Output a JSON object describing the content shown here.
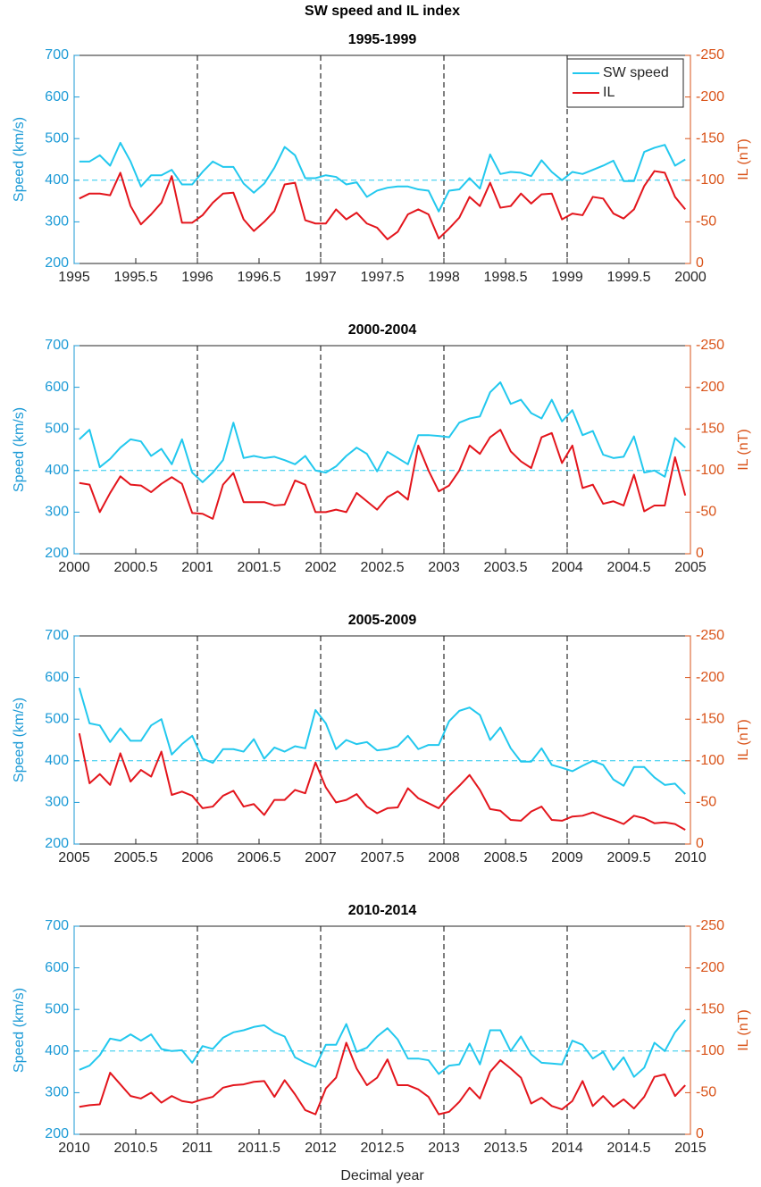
{
  "title": "SW speed and IL index",
  "xlabel": "Decimal year",
  "chart_data": [
    {
      "type": "line",
      "title": "1995-1999",
      "ylabel": "Speed (km/s)",
      "y2label": "IL (nT)",
      "x": [
        1995.042,
        1995.125,
        1995.208,
        1995.292,
        1995.375,
        1995.458,
        1995.542,
        1995.625,
        1995.708,
        1995.792,
        1995.875,
        1995.958,
        1996.042,
        1996.125,
        1996.208,
        1996.292,
        1996.375,
        1996.458,
        1996.542,
        1996.625,
        1996.708,
        1996.792,
        1996.875,
        1996.958,
        1997.042,
        1997.125,
        1997.208,
        1997.292,
        1997.375,
        1997.458,
        1997.542,
        1997.625,
        1997.708,
        1997.792,
        1997.875,
        1997.958,
        1998.042,
        1998.125,
        1998.208,
        1998.292,
        1998.375,
        1998.458,
        1998.542,
        1998.625,
        1998.708,
        1998.792,
        1998.875,
        1998.958,
        1999.042,
        1999.125,
        1999.208,
        1999.292,
        1999.375,
        1999.458,
        1999.542,
        1999.625,
        1999.708,
        1999.792,
        1999.875,
        1999.958
      ],
      "xlim": [
        1995,
        2000
      ],
      "xticks": [
        1995,
        1995.5,
        1996,
        1996.5,
        1997,
        1997.5,
        1998,
        1998.5,
        1999,
        1999.5,
        2000
      ],
      "ylim": [
        200,
        700
      ],
      "yticks": [
        200,
        300,
        400,
        500,
        600,
        700
      ],
      "y2lim": [
        0,
        -250
      ],
      "y2ticks": [
        -250,
        -200,
        -150,
        -100,
        -50,
        0
      ],
      "hline": 400,
      "vlines": [
        1996,
        1997,
        1998,
        1999
      ],
      "legend": "upper right",
      "series": [
        {
          "name": "SW speed",
          "color": "#22c8ee",
          "values": [
            445,
            445,
            460,
            435,
            490,
            445,
            385,
            412,
            412,
            425,
            390,
            390,
            420,
            445,
            432,
            432,
            392,
            370,
            392,
            430,
            480,
            460,
            405,
            405,
            412,
            408,
            390,
            395,
            360,
            375,
            382,
            385,
            385,
            378,
            375,
            325,
            375,
            378,
            405,
            380,
            462,
            415,
            420,
            418,
            410,
            448,
            420,
            400,
            420,
            415,
            425,
            435,
            447,
            398,
            398,
            468,
            478,
            485,
            435,
            450
          ]
        },
        {
          "name": "IL",
          "color": "#e3151c",
          "axis": "y2",
          "values": [
            -78,
            -84,
            -84,
            -82,
            -109,
            -69,
            -47,
            -59,
            -73,
            -105,
            -49,
            -49,
            -58,
            -73,
            -84,
            -85,
            -53,
            -39,
            -50,
            -63,
            -95,
            -97,
            -52,
            -48,
            -48,
            -65,
            -53,
            -61,
            -48,
            -43,
            -29,
            -38,
            -59,
            -65,
            -59,
            -30,
            -42,
            -55,
            -80,
            -69,
            -97,
            -67,
            -69,
            -84,
            -72,
            -83,
            -84,
            -53,
            -60,
            -58,
            -80,
            -78,
            -60,
            -54,
            -65,
            -93,
            -111,
            -109,
            -80,
            -65
          ]
        }
      ]
    },
    {
      "type": "line",
      "title": "2000-2004",
      "ylabel": "Speed (km/s)",
      "y2label": "IL (nT)",
      "x": [
        2000.042,
        2000.125,
        2000.208,
        2000.292,
        2000.375,
        2000.458,
        2000.542,
        2000.625,
        2000.708,
        2000.792,
        2000.875,
        2000.958,
        2001.042,
        2001.125,
        2001.208,
        2001.292,
        2001.375,
        2001.458,
        2001.542,
        2001.625,
        2001.708,
        2001.792,
        2001.875,
        2001.958,
        2002.042,
        2002.125,
        2002.208,
        2002.292,
        2002.375,
        2002.458,
        2002.542,
        2002.625,
        2002.708,
        2002.792,
        2002.875,
        2002.958,
        2003.042,
        2003.125,
        2003.208,
        2003.292,
        2003.375,
        2003.458,
        2003.542,
        2003.625,
        2003.708,
        2003.792,
        2003.875,
        2003.958,
        2004.042,
        2004.125,
        2004.208,
        2004.292,
        2004.375,
        2004.458,
        2004.542,
        2004.625,
        2004.708,
        2004.792,
        2004.875,
        2004.958
      ],
      "xlim": [
        2000,
        2005
      ],
      "xticks": [
        2000,
        2000.5,
        2001,
        2001.5,
        2002,
        2002.5,
        2003,
        2003.5,
        2004,
        2004.5,
        2005
      ],
      "ylim": [
        200,
        700
      ],
      "yticks": [
        200,
        300,
        400,
        500,
        600,
        700
      ],
      "y2lim": [
        0,
        -250
      ],
      "y2ticks": [
        -250,
        -200,
        -150,
        -100,
        -50,
        0
      ],
      "hline": 400,
      "vlines": [
        2001,
        2002,
        2003,
        2004
      ],
      "series": [
        {
          "color": "#22c8ee",
          "values": [
            475,
            498,
            408,
            428,
            455,
            475,
            470,
            435,
            452,
            415,
            475,
            395,
            372,
            395,
            425,
            515,
            430,
            435,
            430,
            433,
            425,
            415,
            435,
            400,
            395,
            410,
            435,
            455,
            440,
            398,
            445,
            430,
            415,
            485,
            485,
            483,
            480,
            515,
            525,
            530,
            588,
            612,
            560,
            570,
            538,
            525,
            570,
            518,
            545,
            485,
            495,
            438,
            430,
            433,
            482,
            395,
            400,
            385,
            478,
            455
          ]
        },
        {
          "color": "#e3151c",
          "axis": "y2",
          "values": [
            -85,
            -83,
            -50,
            -73,
            -93,
            -83,
            -82,
            -74,
            -84,
            -92,
            -84,
            -49,
            -48,
            -42,
            -83,
            -97,
            -62,
            -62,
            -62,
            -58,
            -59,
            -88,
            -83,
            -50,
            -50,
            -53,
            -50,
            -73,
            -63,
            -53,
            -68,
            -75,
            -65,
            -130,
            -100,
            -75,
            -82,
            -100,
            -130,
            -120,
            -140,
            -149,
            -123,
            -111,
            -103,
            -140,
            -145,
            -109,
            -130,
            -79,
            -83,
            -60,
            -63,
            -58,
            -95,
            -51,
            -58,
            -58,
            -116,
            -70
          ]
        }
      ]
    },
    {
      "type": "line",
      "title": "2005-2009",
      "ylabel": "Speed (km/s)",
      "y2label": "IL (nT)",
      "x": [
        2005.042,
        2005.125,
        2005.208,
        2005.292,
        2005.375,
        2005.458,
        2005.542,
        2005.625,
        2005.708,
        2005.792,
        2005.875,
        2005.958,
        2006.042,
        2006.125,
        2006.208,
        2006.292,
        2006.375,
        2006.458,
        2006.542,
        2006.625,
        2006.708,
        2006.792,
        2006.875,
        2006.958,
        2007.042,
        2007.125,
        2007.208,
        2007.292,
        2007.375,
        2007.458,
        2007.542,
        2007.625,
        2007.708,
        2007.792,
        2007.875,
        2007.958,
        2008.042,
        2008.125,
        2008.208,
        2008.292,
        2008.375,
        2008.458,
        2008.542,
        2008.625,
        2008.708,
        2008.792,
        2008.875,
        2008.958,
        2009.042,
        2009.125,
        2009.208,
        2009.292,
        2009.375,
        2009.458,
        2009.542,
        2009.625,
        2009.708,
        2009.792,
        2009.875,
        2009.958
      ],
      "xlim": [
        2005,
        2010
      ],
      "xticks": [
        2005,
        2005.5,
        2006,
        2006.5,
        2007,
        2007.5,
        2008,
        2008.5,
        2009,
        2009.5,
        2010
      ],
      "ylim": [
        200,
        700
      ],
      "yticks": [
        200,
        300,
        400,
        500,
        600,
        700
      ],
      "y2lim": [
        0,
        -250
      ],
      "y2ticks": [
        -250,
        -200,
        -150,
        -100,
        -50,
        0
      ],
      "hline": 400,
      "vlines": [
        2006,
        2007,
        2008,
        2009
      ],
      "series": [
        {
          "color": "#22c8ee",
          "values": [
            575,
            490,
            485,
            445,
            478,
            448,
            448,
            485,
            500,
            415,
            440,
            460,
            405,
            395,
            428,
            428,
            422,
            452,
            405,
            432,
            422,
            435,
            430,
            522,
            490,
            428,
            450,
            440,
            445,
            425,
            428,
            435,
            460,
            428,
            438,
            438,
            495,
            520,
            528,
            510,
            450,
            480,
            430,
            398,
            398,
            430,
            390,
            383,
            375,
            388,
            400,
            390,
            355,
            340,
            385,
            385,
            360,
            342,
            345,
            320
          ]
        },
        {
          "color": "#e3151c",
          "axis": "y2",
          "values": [
            -133,
            -73,
            -84,
            -71,
            -109,
            -75,
            -89,
            -81,
            -111,
            -59,
            -63,
            -58,
            -43,
            -45,
            -58,
            -64,
            -45,
            -48,
            -35,
            -53,
            -53,
            -65,
            -61,
            -98,
            -68,
            -50,
            -53,
            -60,
            -45,
            -37,
            -43,
            -44,
            -67,
            -55,
            -49,
            -43,
            -58,
            -70,
            -83,
            -65,
            -42,
            -40,
            -29,
            -28,
            -39,
            -45,
            -29,
            -28,
            -33,
            -34,
            -38,
            -33,
            -29,
            -24,
            -34,
            -31,
            -25,
            -26,
            -24,
            -17
          ]
        }
      ]
    },
    {
      "type": "line",
      "title": "2010-2014",
      "ylabel": "Speed (km/s)",
      "y2label": "IL (nT)",
      "x": [
        2010.042,
        2010.125,
        2010.208,
        2010.292,
        2010.375,
        2010.458,
        2010.542,
        2010.625,
        2010.708,
        2010.792,
        2010.875,
        2010.958,
        2011.042,
        2011.125,
        2011.208,
        2011.292,
        2011.375,
        2011.458,
        2011.542,
        2011.625,
        2011.708,
        2011.792,
        2011.875,
        2011.958,
        2012.042,
        2012.125,
        2012.208,
        2012.292,
        2012.375,
        2012.458,
        2012.542,
        2012.625,
        2012.708,
        2012.792,
        2012.875,
        2012.958,
        2013.042,
        2013.125,
        2013.208,
        2013.292,
        2013.375,
        2013.458,
        2013.542,
        2013.625,
        2013.708,
        2013.792,
        2013.875,
        2013.958,
        2014.042,
        2014.125,
        2014.208,
        2014.292,
        2014.375,
        2014.458,
        2014.542,
        2014.625,
        2014.708,
        2014.792,
        2014.875,
        2014.958
      ],
      "xlim": [
        2010,
        2015
      ],
      "xticks": [
        2010,
        2010.5,
        2011,
        2011.5,
        2012,
        2012.5,
        2013,
        2013.5,
        2014,
        2014.5,
        2015
      ],
      "ylim": [
        200,
        700
      ],
      "yticks": [
        200,
        300,
        400,
        500,
        600,
        700
      ],
      "y2lim": [
        0,
        -250
      ],
      "y2ticks": [
        -250,
        -200,
        -150,
        -100,
        -50,
        0
      ],
      "hline": 400,
      "vlines": [
        2011,
        2012,
        2013,
        2014
      ],
      "series": [
        {
          "color": "#22c8ee",
          "values": [
            355,
            365,
            390,
            430,
            425,
            440,
            425,
            440,
            405,
            400,
            402,
            372,
            412,
            405,
            432,
            445,
            450,
            458,
            462,
            445,
            435,
            385,
            372,
            362,
            415,
            415,
            465,
            398,
            408,
            435,
            455,
            428,
            382,
            382,
            378,
            345,
            365,
            368,
            418,
            368,
            450,
            450,
            400,
            435,
            392,
            372,
            370,
            368,
            425,
            415,
            382,
            398,
            355,
            385,
            338,
            360,
            420,
            400,
            445,
            475
          ]
        },
        {
          "color": "#e3151c",
          "axis": "y2",
          "values": [
            -33,
            -35,
            -36,
            -74,
            -60,
            -46,
            -43,
            -50,
            -38,
            -46,
            -40,
            -38,
            -42,
            -45,
            -56,
            -59,
            -60,
            -63,
            -64,
            -45,
            -65,
            -48,
            -29,
            -24,
            -55,
            -68,
            -110,
            -79,
            -59,
            -68,
            -90,
            -59,
            -59,
            -54,
            -45,
            -24,
            -27,
            -39,
            -56,
            -43,
            -75,
            -89,
            -79,
            -68,
            -37,
            -44,
            -34,
            -30,
            -40,
            -64,
            -34,
            -46,
            -33,
            -42,
            -31,
            -45,
            -69,
            -72,
            -46,
            -59
          ]
        }
      ]
    }
  ]
}
